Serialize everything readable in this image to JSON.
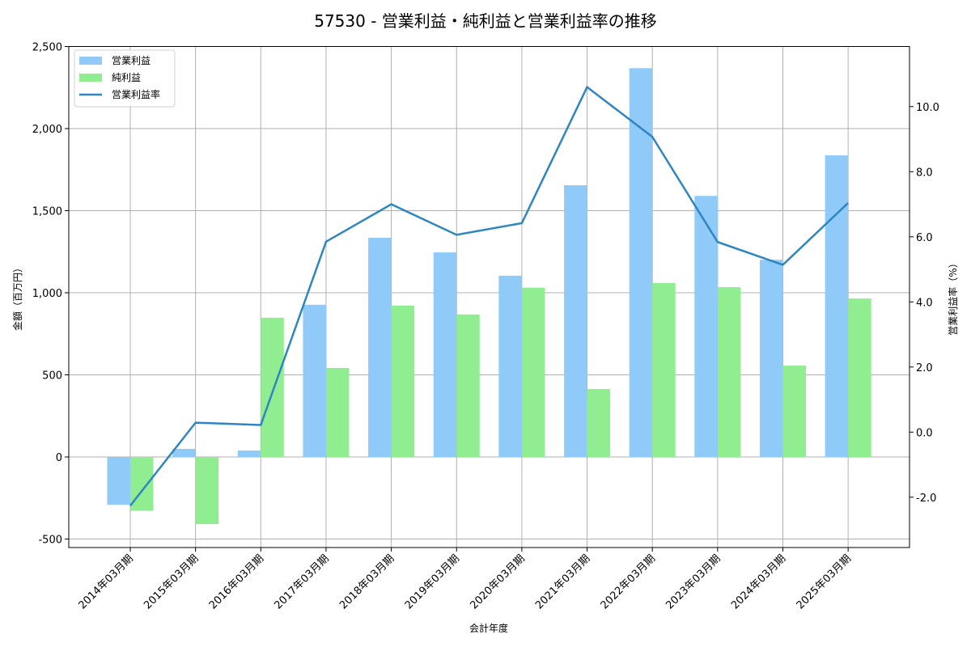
{
  "chart_data": {
    "type": "bar+line",
    "title": "57530 - 営業利益・純利益と営業利益率の推移",
    "xlabel": "会計年度",
    "ylabel": "金額（百万円）",
    "y2label": "営業利益率（%）",
    "categories": [
      "2014年03月期",
      "2015年03月期",
      "2016年03月期",
      "2017年03月期",
      "2018年03月期",
      "2019年03月期",
      "2020年03月期",
      "2021年03月期",
      "2022年03月期",
      "2023年03月期",
      "2024年03月期",
      "2025年03月期"
    ],
    "series": [
      {
        "name": "営業利益",
        "type": "bar",
        "axis": "left",
        "color": "#90caf9",
        "values": [
          -292,
          49,
          39,
          927,
          1335,
          1246,
          1104,
          1655,
          2368,
          1590,
          1201,
          1837
        ]
      },
      {
        "name": "純利益",
        "type": "bar",
        "axis": "left",
        "color": "#90ee90",
        "values": [
          -328,
          -409,
          848,
          542,
          922,
          868,
          1031,
          414,
          1059,
          1034,
          556,
          965
        ]
      },
      {
        "name": "営業利益率",
        "type": "line",
        "axis": "right",
        "color": "#2e86c1",
        "values": [
          -2.26,
          0.29,
          0.22,
          5.85,
          7.0,
          6.06,
          6.42,
          10.6,
          9.07,
          5.84,
          5.14,
          7.04
        ]
      }
    ],
    "ylim": [
      -550,
      2500
    ],
    "y2lim": [
      -3.56,
      11.85
    ],
    "yticks": [
      -500,
      0,
      500,
      1000,
      1500,
      2000,
      2500
    ],
    "ytick_labels": [
      "-500",
      "0",
      "500",
      "1,000",
      "1,500",
      "2,000",
      "2,500"
    ],
    "y2ticks": [
      -2,
      0,
      2,
      4,
      6,
      8,
      10
    ],
    "y2tick_labels": [
      "-2.0",
      "0.0",
      "2.0",
      "4.0",
      "6.0",
      "8.0",
      "10.0"
    ],
    "grid": true,
    "legend_position": "upper left"
  }
}
